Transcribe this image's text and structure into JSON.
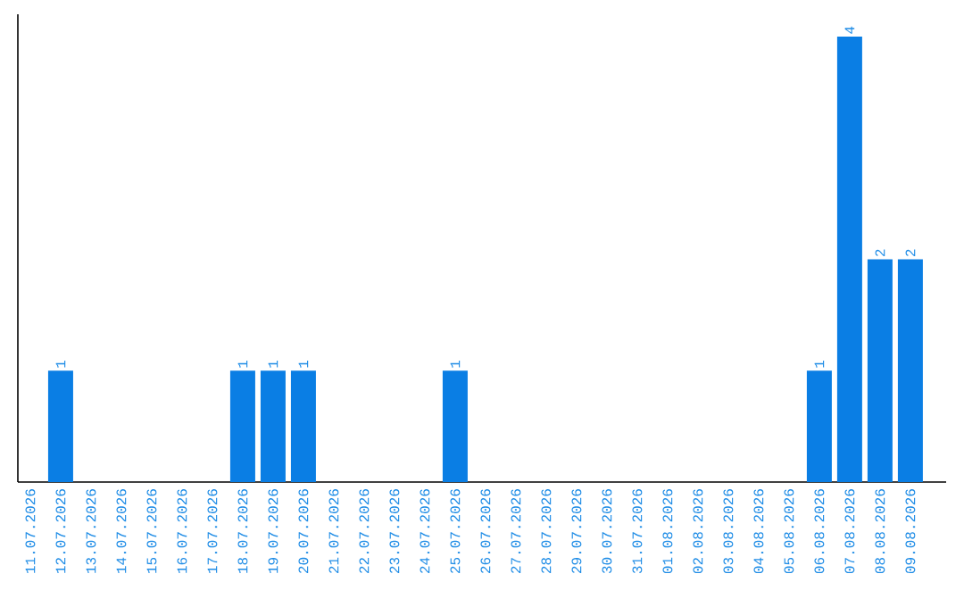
{
  "chart_data": {
    "type": "bar",
    "categories": [
      "11.07.2026",
      "12.07.2026",
      "13.07.2026",
      "14.07.2026",
      "15.07.2026",
      "16.07.2026",
      "17.07.2026",
      "18.07.2026",
      "19.07.2026",
      "20.07.2026",
      "21.07.2026",
      "22.07.2026",
      "23.07.2026",
      "24.07.2026",
      "25.07.2026",
      "26.07.2026",
      "27.07.2026",
      "28.07.2026",
      "29.07.2026",
      "30.07.2026",
      "31.07.2026",
      "01.08.2026",
      "02.08.2026",
      "03.08.2026",
      "04.08.2026",
      "05.08.2026",
      "06.08.2026",
      "07.08.2026",
      "08.08.2026",
      "09.08.2026"
    ],
    "values": [
      0,
      1,
      0,
      0,
      0,
      0,
      0,
      1,
      1,
      1,
      0,
      0,
      0,
      0,
      1,
      0,
      0,
      0,
      0,
      0,
      0,
      0,
      0,
      0,
      0,
      0,
      1,
      4,
      2,
      2
    ],
    "value_labels": [
      null,
      "1",
      null,
      null,
      null,
      null,
      null,
      "1",
      "1",
      "1",
      null,
      null,
      null,
      null,
      "1",
      null,
      null,
      null,
      null,
      null,
      null,
      null,
      null,
      null,
      null,
      null,
      "1",
      "4",
      "2",
      "2"
    ],
    "color": "#0a7ee4",
    "ylim": [
      0,
      4.2
    ],
    "tick_labels": "x"
  }
}
